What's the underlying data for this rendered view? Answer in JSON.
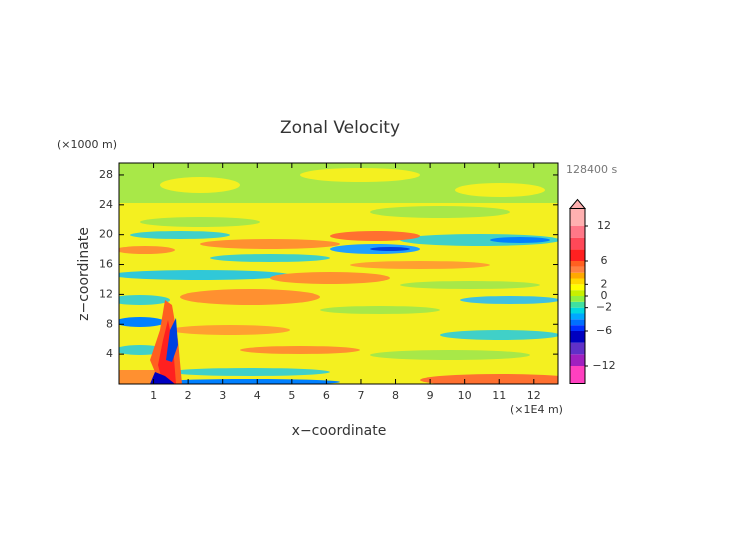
{
  "chart_data": {
    "type": "contour",
    "title": "Zonal Velocity",
    "y_unit": "(×1000 m)",
    "time": "128400 s",
    "x_unit": "(×1E4 m)",
    "xlabel": "x−coordinate",
    "ylabel": "z−coordinate",
    "xlim": [
      0,
      12.7
    ],
    "xticks": [
      1,
      2,
      3,
      4,
      5,
      6,
      7,
      8,
      9,
      10,
      11,
      12
    ],
    "ylim": [
      0,
      29.6
    ],
    "yticks": [
      4,
      8,
      12,
      16,
      20,
      24,
      28
    ],
    "colorbar": {
      "levels": [
        -15,
        -12,
        -10,
        -8,
        -6,
        -5,
        -4,
        -3,
        -2,
        -1,
        0,
        1,
        2,
        3,
        4,
        5,
        6,
        8,
        10,
        12,
        15
      ],
      "colors": [
        "#ff40c0",
        "#a020c0",
        "#6030c8",
        "#0000c0",
        "#0030ff",
        "#0070ff",
        "#00a8ff",
        "#00d8e0",
        "#40e0a0",
        "#90f040",
        "#c8f000",
        "#ffff00",
        "#ffd800",
        "#ffa800",
        "#ff8040",
        "#ff6020",
        "#ff2020",
        "#ff4858",
        "#ff7888",
        "#ffb0b0"
      ],
      "extend": "max",
      "ticks": [
        {
          "value": -12,
          "label": "−12"
        },
        {
          "value": -6,
          "label": "−6"
        },
        {
          "value": -2,
          "label": "−2"
        },
        0,
        2,
        6,
        12
      ]
    }
  }
}
